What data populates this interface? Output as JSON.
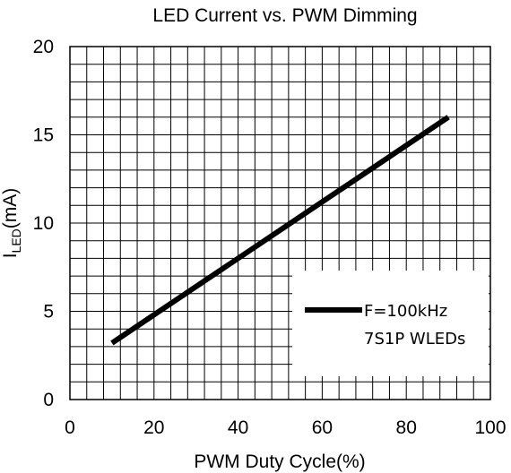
{
  "chart_data": {
    "type": "line",
    "title": "LED Current vs. PWM Dimming",
    "xlabel": "PWM Duty Cycle(%)",
    "ylabel": {
      "main": "I",
      "sub": "LED",
      "unit": "(mA)"
    },
    "xlim": [
      0,
      100
    ],
    "ylim": [
      0,
      20
    ],
    "x_ticks": [
      0,
      20,
      40,
      60,
      80,
      100
    ],
    "y_ticks": [
      0,
      5,
      10,
      15,
      20
    ],
    "x_minor_step": 4,
    "y_minor_step": 1,
    "grid": true,
    "legend_placement": "bottom-right",
    "series": [
      {
        "name": "F=100kHz",
        "note": "7S1P WLEDs",
        "color": "#000000",
        "x": [
          10,
          90
        ],
        "y": [
          3.2,
          16
        ]
      }
    ]
  }
}
